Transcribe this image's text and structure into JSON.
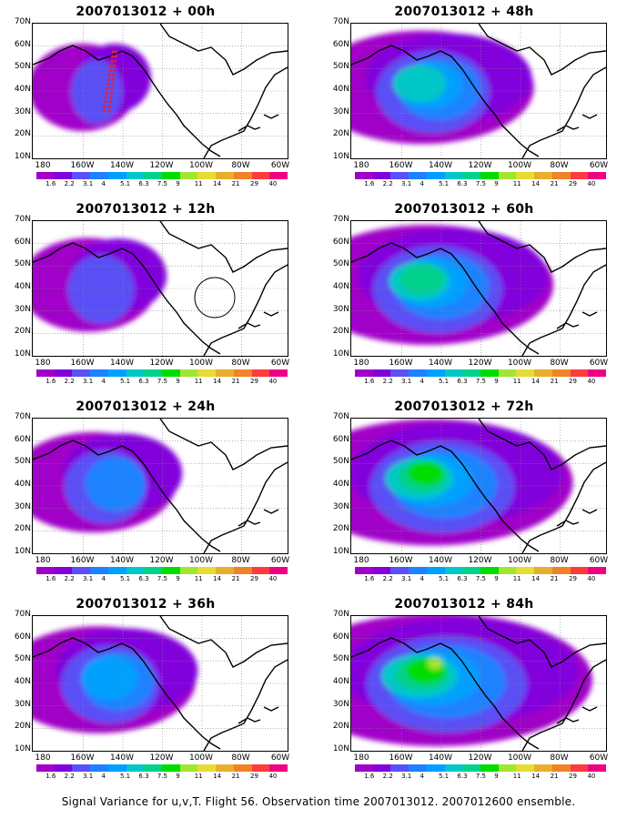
{
  "panels": [
    {
      "title": "2007013012 + 00h",
      "level": 0
    },
    {
      "title": "2007013012 + 12h",
      "level": 1
    },
    {
      "title": "2007013012 + 24h",
      "level": 2
    },
    {
      "title": "2007013012 + 36h",
      "level": 3
    },
    {
      "title": "2007013012 + 48h",
      "level": 4
    },
    {
      "title": "2007013012 + 60h",
      "level": 5
    },
    {
      "title": "2007013012 + 72h",
      "level": 6
    },
    {
      "title": "2007013012 + 84h",
      "level": 7
    }
  ],
  "y_labels": [
    "70N",
    "60N",
    "50N",
    "40N",
    "30N",
    "20N",
    "10N"
  ],
  "x_labels": [
    "180",
    "160W",
    "140W",
    "120W",
    "100W",
    "80W",
    "60W"
  ],
  "colorbar": {
    "labels": [
      "1.6",
      "2.2",
      "3.1",
      "4",
      "5.1",
      "6.3",
      "7.5",
      "9",
      "11",
      "14",
      "21",
      "29",
      "40"
    ],
    "colors": [
      "#a000c8",
      "#8200dc",
      "#5a50f5",
      "#1e82ff",
      "#00a0ff",
      "#00c8c8",
      "#00d28c",
      "#00dc00",
      "#a0e632",
      "#e6dc32",
      "#e6af2d",
      "#f08228",
      "#fa3c3c",
      "#f00082"
    ]
  },
  "caption": "Signal Variance for u,v,T. Flight 56. Observation time 2007013012. 2007012600 ensemble."
}
